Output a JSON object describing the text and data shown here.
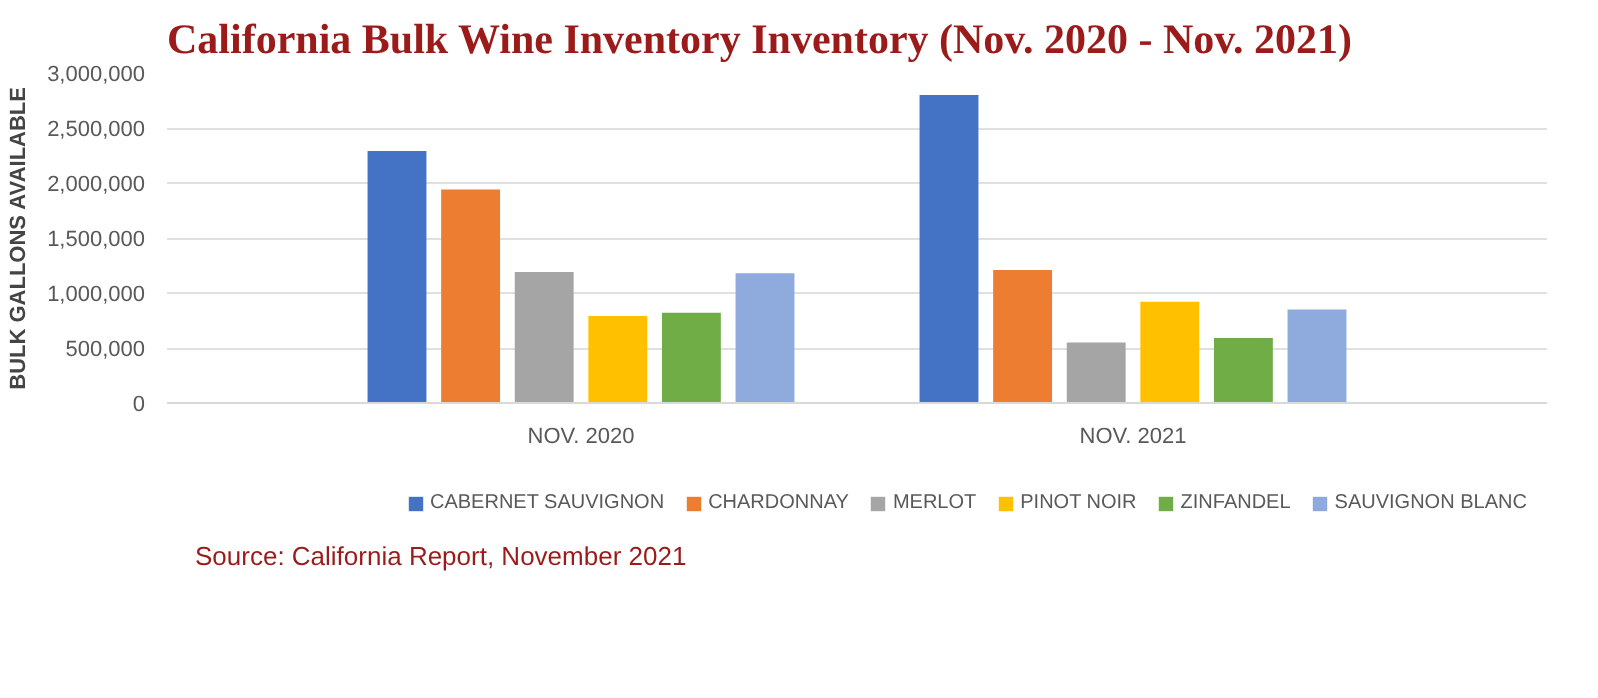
{
  "chart_data": {
    "type": "bar",
    "title": "California Bulk Wine Inventory Inventory (Nov. 2020 - Nov. 2021)",
    "ylabel": "BULK GALLONS AVAILABLE",
    "categories": [
      "NOV. 2020",
      "NOV. 2021"
    ],
    "series": [
      {
        "name": "CABERNET SAUVIGNON",
        "color": "#4472c4",
        "values": [
          2290000,
          2800000
        ]
      },
      {
        "name": "CHARDONNAY",
        "color": "#ed7d31",
        "values": [
          1940000,
          1210000
        ]
      },
      {
        "name": "MERLOT",
        "color": "#a5a5a5",
        "values": [
          1190000,
          550000
        ]
      },
      {
        "name": "PINOT NOIR",
        "color": "#ffc000",
        "values": [
          790000,
          920000
        ]
      },
      {
        "name": "ZINFANDEL",
        "color": "#70ad47",
        "values": [
          820000,
          590000
        ]
      },
      {
        "name": "SAUVIGNON BLANC",
        "color": "#8faadc",
        "values": [
          1180000,
          850000
        ]
      }
    ],
    "ylim": [
      0,
      3000000
    ],
    "yticks": [
      0,
      {
        "value": 500000,
        "label": "500,000"
      },
      {
        "value": 1000000,
        "label": "1,000,000"
      },
      {
        "value": 1500000,
        "label": "1,500,000"
      },
      {
        "value": 2000000,
        "label": "2,000,000"
      },
      {
        "value": 2500000,
        "label": "2,500,000"
      },
      {
        "value": 3000000,
        "label": "3,000,000"
      }
    ],
    "grid": "y",
    "legend": "bottom",
    "annotations": [
      "Source: California Report, November 2021"
    ]
  }
}
